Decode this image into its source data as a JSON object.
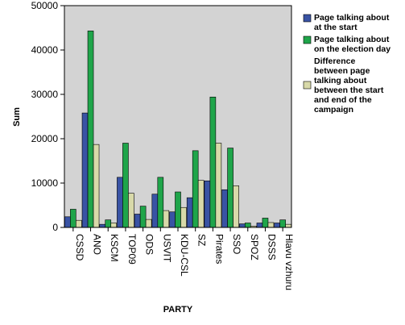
{
  "chart_data": {
    "type": "bar",
    "xlabel": "PARTY",
    "ylabel": "Sum",
    "ylim": [
      0,
      50000
    ],
    "yticks": [
      0,
      10000,
      20000,
      30000,
      40000,
      50000
    ],
    "ytick_labels": [
      "0",
      "10000",
      "20000",
      "30000",
      "40000",
      "50000"
    ],
    "grid": false,
    "legend_position": "right",
    "categories": [
      "CSSD",
      "ANO",
      "KSCM",
      "TOP09",
      "ODS",
      "USVIT",
      "KDU-CSL",
      "SZ",
      "Pirates",
      "SSO",
      "SPOZ",
      "DSSS",
      "Hlavu vzhuru"
    ],
    "series": [
      {
        "name": "Page talking about at the start",
        "color": "#3953a4",
        "values": [
          2400,
          25800,
          700,
          11300,
          3000,
          7500,
          3500,
          6700,
          10500,
          8500,
          800,
          1000,
          1000
        ]
      },
      {
        "name": "Page talking about on the election day",
        "color": "#1fa54a",
        "values": [
          4100,
          44300,
          1700,
          19000,
          4800,
          11300,
          8000,
          17300,
          29400,
          17900,
          1000,
          2100,
          1700
        ]
      },
      {
        "name": "Difference between page talking about between the start and end of the campaign",
        "color": "#d8d9a9",
        "values": [
          1600,
          18700,
          1000,
          7700,
          1800,
          3800,
          4500,
          10600,
          19000,
          9400,
          300,
          1100,
          700
        ]
      }
    ],
    "legend_lines": [
      [
        "Page talking about",
        "at the start"
      ],
      [
        "Page talking about",
        "on the election day"
      ],
      [
        "Difference",
        "between page",
        "talking about",
        "between the start",
        "and end of the",
        "campaign"
      ]
    ]
  }
}
